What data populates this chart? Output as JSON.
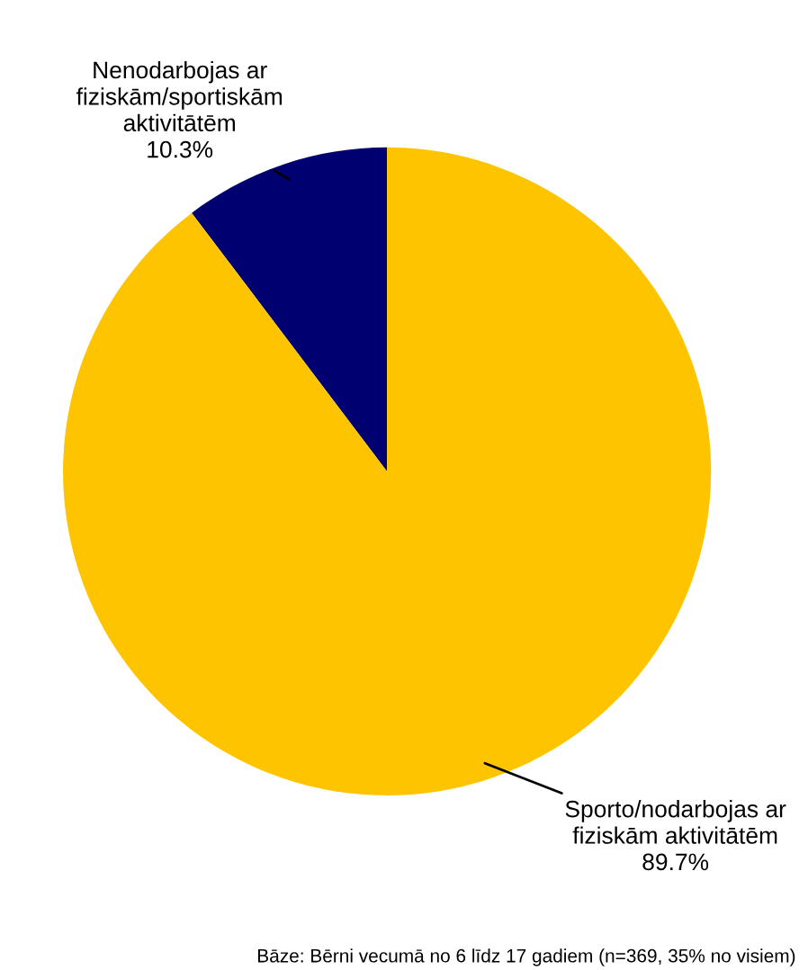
{
  "chart_data": {
    "type": "pie",
    "categories": [
      "Nenodarbojas ar\nfiziskām/sportiskām\naktivitātēm",
      "Sporto/nodarbojas ar\nfiziskām aktivitātēm"
    ],
    "values": [
      10.3,
      89.7
    ],
    "colors": [
      "#000070",
      "#ffc400"
    ],
    "value_labels": [
      "10.3%",
      "89.7%"
    ],
    "legend": false,
    "annotations": [
      "Bāze: Bērni vecumā no 6 līdz 17 gadiem (n=369, 35% no visiem)"
    ]
  }
}
